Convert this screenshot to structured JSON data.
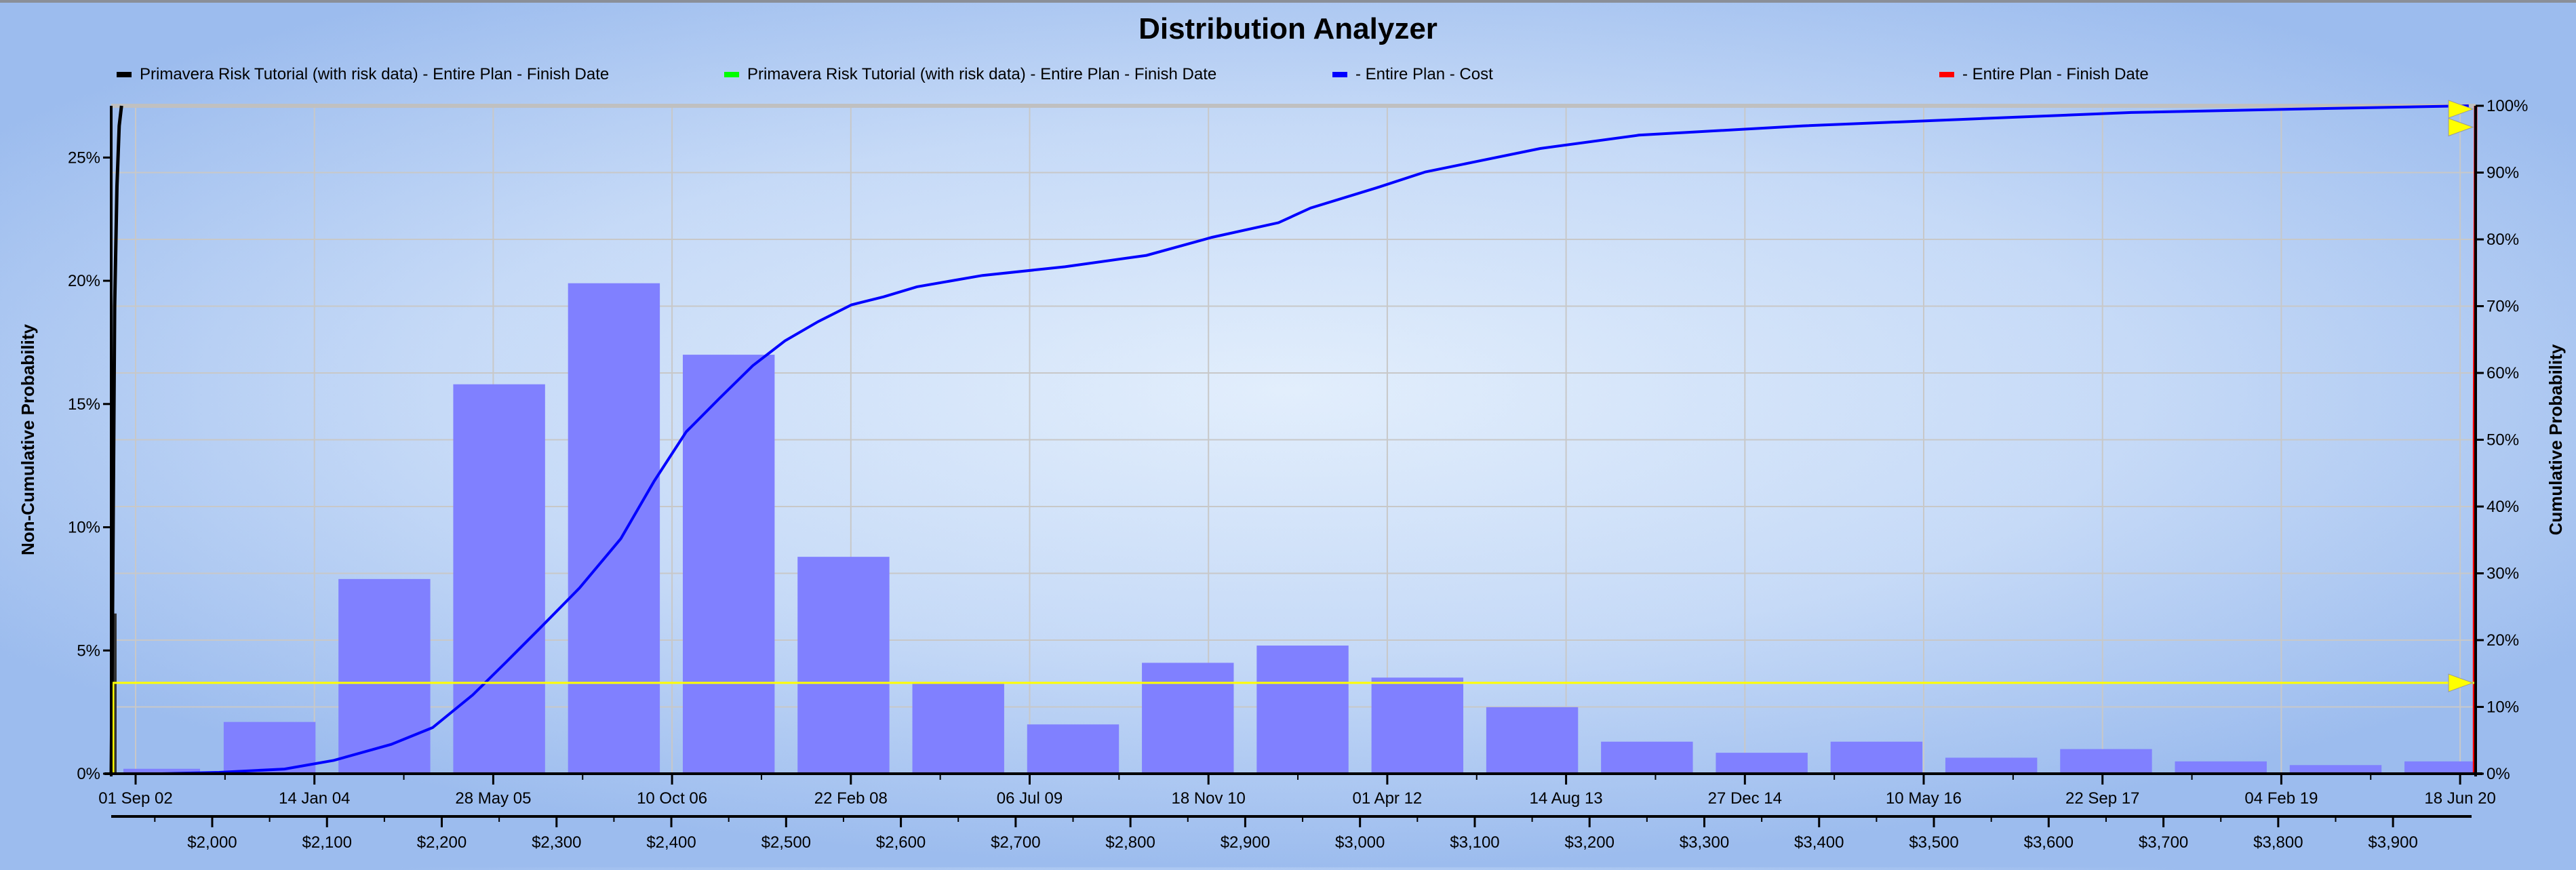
{
  "window": {
    "title": "Distribution Analyzer"
  },
  "legend": [
    {
      "label": "Primavera Risk Tutorial (with risk data) - Entire Plan - Finish Date",
      "color": "#000000"
    },
    {
      "label": "Primavera Risk Tutorial (with risk data) - Entire Plan - Finish Date",
      "color": "#00ff00"
    },
    {
      "label": " - Entire Plan - Cost",
      "color": "#0000ff"
    },
    {
      "label": " - Entire Plan - Finish Date",
      "color": "#ff0000"
    }
  ],
  "chart_data": {
    "type": "bar",
    "title": "Distribution Analyzer",
    "ylabel": "Non-Cumulative Probability",
    "y2label": "Cumulative Probability",
    "ylim": [
      0,
      27.1
    ],
    "y2lim": [
      0,
      100
    ],
    "xlim_cost": [
      1912,
      3972
    ],
    "grid": true,
    "legend_position": "top",
    "y_ticks": [
      "0%",
      "5%",
      "10%",
      "15%",
      "20%",
      "25%"
    ],
    "y2_ticks": [
      "0%",
      "10%",
      "20%",
      "30%",
      "40%",
      "50%",
      "60%",
      "70%",
      "80%",
      "90%",
      "100%"
    ],
    "date_ticks": [
      "01 Sep 02",
      "14 Jan 04",
      "28 May 05",
      "10 Oct 06",
      "22 Feb 08",
      "06 Jul 09",
      "18 Nov 10",
      "01 Apr 12",
      "14 Aug 13",
      "27 Dec 14",
      "10 May 16",
      "22 Sep 17",
      "04 Feb 19",
      "18 Jun 20"
    ],
    "cost_ticks": [
      "$2,000",
      "$2,100",
      "$2,200",
      "$2,300",
      "$2,400",
      "$2,500",
      "$2,600",
      "$2,700",
      "$2,800",
      "$2,900",
      "$3,000",
      "$3,100",
      "$3,200",
      "$3,300",
      "$3,400",
      "$3,500",
      "$3,600",
      "$3,700",
      "$3,800",
      "$3,900"
    ],
    "cost_tick_values": [
      2000,
      2100,
      2200,
      2300,
      2400,
      2500,
      2600,
      2700,
      2800,
      2900,
      3000,
      3100,
      3200,
      3300,
      3400,
      3500,
      3600,
      3700,
      3800,
      3900
    ],
    "bars": {
      "name": "Entire Plan - Cost (non-cumulative)",
      "color": "#8080ff",
      "bin_width": 80,
      "centers": [
        1955,
        2050,
        2150,
        2250,
        2350,
        2450,
        2550,
        2650,
        2750,
        2850,
        2950,
        3050,
        3150,
        3250,
        3350,
        3450,
        3550,
        3650,
        3750,
        3850,
        3950
      ],
      "values": [
        0.2,
        2.1,
        7.9,
        15.8,
        19.9,
        17.0,
        8.8,
        3.7,
        2.0,
        4.5,
        5.2,
        3.9,
        2.7,
        1.3,
        0.85,
        1.3,
        0.65,
        1.0,
        0.5,
        0.35,
        0.5
      ]
    },
    "series": [
      {
        "name": "Entire Plan - Cost (cumulative)",
        "color": "#0000ff",
        "axis": "y2",
        "x": [
          1956,
          2006,
          2063,
          2106,
          2156,
          2192,
          2227,
          2256,
          2285,
          2320,
          2356,
          2385,
          2413,
          2442,
          2471,
          2499,
          2528,
          2557,
          2585,
          2614,
          2671,
          2743,
          2814,
          2871,
          2929,
          2957,
          3014,
          3057,
          3100,
          3157,
          3243,
          3386,
          3529,
          3672,
          3815,
          3966
        ],
        "y": [
          0,
          0.2,
          0.7,
          2,
          4.4,
          6.9,
          11.8,
          16.7,
          21.7,
          27.8,
          35.2,
          43.8,
          51.2,
          56.2,
          61.1,
          64.8,
          67.7,
          70.2,
          71.4,
          72.9,
          74.6,
          75.9,
          77.6,
          80.3,
          82.5,
          84.7,
          87.7,
          90.1,
          91.6,
          93.6,
          95.6,
          97.0,
          98.0,
          99.0,
          99.5,
          100
        ]
      },
      {
        "name": "Finish Date (cumulative, black)",
        "color": "#000000",
        "axis": "y2",
        "x": [
          1912,
          1913,
          1914,
          1915,
          1917,
          1919,
          1921
        ],
        "y": [
          0,
          20,
          45,
          70,
          88,
          97,
          100
        ]
      },
      {
        "name": "Finish Date (red)",
        "color": "#ff0000",
        "axis": "y2",
        "x": [
          3971,
          3971,
          3972
        ],
        "y": [
          0,
          52,
          100
        ]
      }
    ],
    "markers": {
      "yellow_line_cumulative": 13.6,
      "yellow_arrows_cumulative": [
        13.6,
        96.8,
        99.5
      ],
      "color": "#ffff00"
    }
  }
}
